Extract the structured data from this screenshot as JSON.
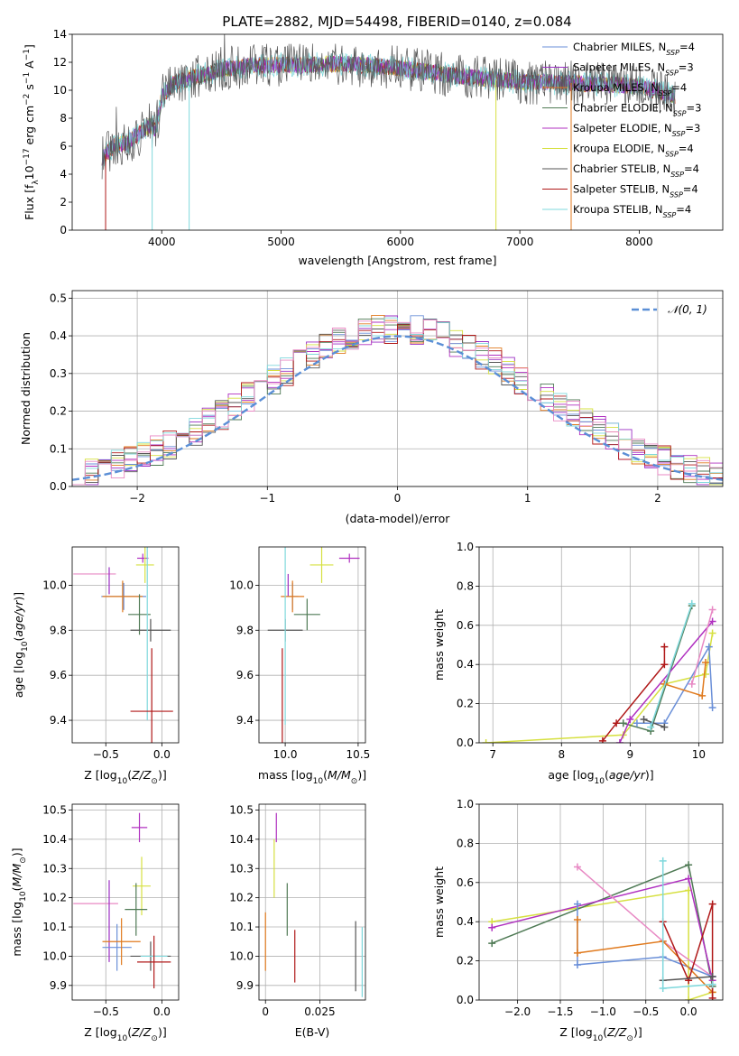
{
  "figure_title": "PLATE=2882, MJD=54498, FIBERID=0140, z=0.084",
  "colors": {
    "Chabrier MILES": "#6a8fd8",
    "Salpeter MILES": "#9b2fc4",
    "Kroupa MILES": "#e07a1e",
    "Chabrier ELODIE": "#4f7a55",
    "Salpeter ELODIE": "#b030c0",
    "Kroupa ELODIE": "#d6e040",
    "Chabrier STELIB": "#555555",
    "Salpeter STELIB": "#b01818",
    "Kroupa STELIB": "#7fd8dc",
    "pink": "#e889c4",
    "gaussian": "#5b8fd6"
  },
  "chart_data": [
    {
      "id": "spectrum",
      "type": "line",
      "title": "",
      "xlabel": "wavelength [Angstrom, rest frame]",
      "ylabel": "Flux [f_λ 10^-17 erg cm^-2 s^-1 A^-1]",
      "xlim": [
        3250,
        8700
      ],
      "ylim": [
        0,
        14
      ],
      "xticks": [
        4000,
        5000,
        6000,
        7000,
        8000
      ],
      "yticks": [
        0,
        2,
        4,
        6,
        8,
        10,
        12,
        14
      ],
      "legend_position": "top-right",
      "legend": [
        {
          "label": "Chabrier MILES, N",
          "sub": "SSP",
          "tail": "=4"
        },
        {
          "label": "Salpeter MILES, N",
          "sub": "SSP",
          "tail": "=3"
        },
        {
          "label": "Kroupa MILES, N",
          "sub": "SSP",
          "tail": "=4"
        },
        {
          "label": "Chabrier ELODIE, N",
          "sub": "SSP",
          "tail": "=3"
        },
        {
          "label": "Salpeter ELODIE, N",
          "sub": "SSP",
          "tail": "=3"
        },
        {
          "label": "Kroupa ELODIE, N",
          "sub": "SSP",
          "tail": "=4"
        },
        {
          "label": "Chabrier STELIB, N",
          "sub": "SSP",
          "tail": "=4"
        },
        {
          "label": "Salpeter STELIB, N",
          "sub": "SSP",
          "tail": "=4"
        },
        {
          "label": "Kroupa STELIB, N",
          "sub": "SSP",
          "tail": "=4"
        }
      ],
      "continuum": [
        [
          3500,
          5.2
        ],
        [
          3600,
          6.0
        ],
        [
          3700,
          6.2
        ],
        [
          3800,
          6.8
        ],
        [
          3900,
          7.5
        ],
        [
          3950,
          7.2
        ],
        [
          4000,
          9.5
        ],
        [
          4100,
          10.5
        ],
        [
          4300,
          11.0
        ],
        [
          4500,
          11.5
        ],
        [
          4800,
          11.8
        ],
        [
          5000,
          11.8
        ],
        [
          5200,
          11.8
        ],
        [
          5500,
          11.9
        ],
        [
          6000,
          11.6
        ],
        [
          6500,
          11.0
        ],
        [
          7000,
          10.6
        ],
        [
          7500,
          10.5
        ],
        [
          8000,
          10.3
        ],
        [
          8300,
          9.6
        ]
      ],
      "dips": [
        [
          3530,
          0
        ],
        [
          3920,
          0
        ],
        [
          4230,
          0
        ],
        [
          6800,
          0
        ],
        [
          7430,
          0
        ]
      ]
    },
    {
      "id": "residuals",
      "type": "histogram",
      "xlabel": "(data-model)/error",
      "ylabel": "Normed distribution",
      "xlim": [
        -2.5,
        2.5
      ],
      "ylim": [
        0,
        0.52
      ],
      "xticks": [
        -2,
        -1,
        0,
        1,
        2
      ],
      "yticks": [
        0.0,
        0.1,
        0.2,
        0.3,
        0.4,
        0.5
      ],
      "legend_position": "top-right",
      "legend_label": "𝒩(0, 1)",
      "bin_width": 0.1
    },
    {
      "id": "age_vs_Z",
      "type": "errorbar",
      "xlabel": "Z [log10(Z/Z⊙)]",
      "ylabel": "age [log10(age/yr)]",
      "xlim": [
        -0.8,
        0.15
      ],
      "ylim": [
        9.3,
        10.17
      ],
      "xticks": [
        -0.5,
        0.0
      ],
      "yticks": [
        9.4,
        9.6,
        9.8,
        10.0
      ],
      "points": [
        {
          "model": "Salpeter ELODIE",
          "x": -0.17,
          "y": 10.12,
          "xerr": 0.05,
          "yerr": 0.02
        },
        {
          "model": "Kroupa ELODIE",
          "x": -0.15,
          "y": 10.09,
          "xerr": 0.08,
          "yerr": 0.08
        },
        {
          "model": "pink",
          "x": -0.6,
          "y": 10.05,
          "xerr": 0.19,
          "yerr": 0.0
        },
        {
          "model": "Salpeter MILES",
          "x": -0.47,
          "y": 10.02,
          "xerr": 0.0,
          "yerr": 0.06
        },
        {
          "model": "Chabrier MILES",
          "x": -0.34,
          "y": 9.95,
          "xerr": 0.2,
          "yerr": 0.06
        },
        {
          "model": "Kroupa MILES",
          "x": -0.35,
          "y": 9.95,
          "xerr": 0.18,
          "yerr": 0.07
        },
        {
          "model": "Chabrier ELODIE",
          "x": -0.2,
          "y": 9.87,
          "xerr": 0.1,
          "yerr": 0.09
        },
        {
          "model": "Chabrier STELIB",
          "x": -0.1,
          "y": 9.8,
          "xerr": 0.18,
          "yerr": 0.05
        },
        {
          "model": "Kroupa STELIB",
          "x": -0.13,
          "y": 9.8,
          "xerr": 0.0,
          "yerr": 0.4
        },
        {
          "model": "Salpeter STELIB",
          "x": -0.09,
          "y": 9.44,
          "xerr": 0.19,
          "yerr": 0.28
        }
      ]
    },
    {
      "id": "age_vs_mass",
      "type": "errorbar",
      "xlabel": "mass [log10(M/M⊙)]",
      "ylabel": "",
      "xlim": [
        9.82,
        10.55
      ],
      "ylim": [
        9.3,
        10.17
      ],
      "xticks": [
        10.0,
        10.5
      ],
      "yticks": [
        9.4,
        9.6,
        9.8,
        10.0
      ],
      "points": [
        {
          "model": "Salpeter ELODIE",
          "x": 10.44,
          "y": 10.12,
          "xerr": 0.07,
          "yerr": 0.02
        },
        {
          "model": "Kroupa ELODIE",
          "x": 10.25,
          "y": 10.09,
          "xerr": 0.08,
          "yerr": 0.08
        },
        {
          "model": "Salpeter MILES",
          "x": 10.02,
          "y": 10.0,
          "xerr": 0.0,
          "yerr": 0.05
        },
        {
          "model": "Chabrier MILES",
          "x": 10.05,
          "y": 9.95,
          "xerr": 0.04,
          "yerr": 0.06
        },
        {
          "model": "Kroupa MILES",
          "x": 10.05,
          "y": 9.95,
          "xerr": 0.08,
          "yerr": 0.07
        },
        {
          "model": "Chabrier ELODIE",
          "x": 10.15,
          "y": 9.87,
          "xerr": 0.09,
          "yerr": 0.07
        },
        {
          "model": "Chabrier STELIB",
          "x": 10.0,
          "y": 9.8,
          "xerr": 0.12,
          "yerr": 0.05
        },
        {
          "model": "Kroupa STELIB",
          "x": 10.0,
          "y": 9.78,
          "xerr": 0.0,
          "yerr": 0.4
        },
        {
          "model": "Salpeter STELIB",
          "x": 9.98,
          "y": 9.44,
          "xerr": 0.0,
          "yerr": 0.28
        }
      ]
    },
    {
      "id": "weight_vs_age",
      "type": "line",
      "xlabel": "age [log10(age/yr)]",
      "ylabel": "mass weight",
      "xlim": [
        6.8,
        10.35
      ],
      "ylim": [
        0.0,
        1.0
      ],
      "xticks": [
        7,
        8,
        9,
        10
      ],
      "yticks": [
        0.0,
        0.2,
        0.4,
        0.6,
        0.8,
        1.0
      ],
      "series": [
        {
          "model": "Kroupa ELODIE",
          "x": [
            6.9,
            8.9,
            9.5,
            10.1,
            10.2
          ],
          "y": [
            0.0,
            0.04,
            0.3,
            0.35,
            0.56
          ]
        },
        {
          "model": "Salpeter STELIB",
          "x": [
            8.6,
            8.8,
            9.5,
            9.5
          ],
          "y": [
            0.01,
            0.1,
            0.4,
            0.49
          ]
        },
        {
          "model": "Chabrier ELODIE",
          "x": [
            8.9,
            9.3,
            9.9
          ],
          "y": [
            0.1,
            0.06,
            0.7
          ]
        },
        {
          "model": "Salpeter ELODIE",
          "x": [
            8.85,
            9.0,
            10.2
          ],
          "y": [
            0.0,
            0.12,
            0.62
          ]
        },
        {
          "model": "Chabrier MILES",
          "x": [
            9.1,
            9.5,
            10.15,
            10.2
          ],
          "y": [
            0.1,
            0.1,
            0.49,
            0.18
          ]
        },
        {
          "model": "Kroupa MILES",
          "x": [
            9.5,
            10.05,
            10.1
          ],
          "y": [
            0.3,
            0.24,
            0.41
          ]
        },
        {
          "model": "Chabrier STELIB",
          "x": [
            9.2,
            9.5
          ],
          "y": [
            0.12,
            0.08
          ]
        },
        {
          "model": "Kroupa STELIB",
          "x": [
            9.3,
            9.9
          ],
          "y": [
            0.08,
            0.71
          ]
        },
        {
          "model": "pink",
          "x": [
            9.9,
            10.2
          ],
          "y": [
            0.3,
            0.68
          ]
        }
      ]
    },
    {
      "id": "mass_vs_Z",
      "type": "errorbar",
      "xlabel": "Z [log10(Z/Z⊙)]",
      "ylabel": "mass [log10(M/M⊙)]",
      "xlim": [
        -0.8,
        0.15
      ],
      "ylim": [
        9.85,
        10.52
      ],
      "xticks": [
        -0.5,
        0.0
      ],
      "yticks": [
        9.9,
        10.0,
        10.1,
        10.2,
        10.3,
        10.4,
        10.5
      ],
      "points": [
        {
          "model": "Salpeter ELODIE",
          "x": -0.2,
          "y": 10.44,
          "xerr": 0.07,
          "yerr": 0.05
        },
        {
          "model": "Kroupa ELODIE",
          "x": -0.18,
          "y": 10.24,
          "xerr": 0.08,
          "yerr": 0.1
        },
        {
          "model": "pink",
          "x": -0.59,
          "y": 10.18,
          "xerr": 0.2,
          "yerr": 0.0
        },
        {
          "model": "Chabrier ELODIE",
          "x": -0.23,
          "y": 10.16,
          "xerr": 0.1,
          "yerr": 0.09
        },
        {
          "model": "Salpeter MILES",
          "x": -0.47,
          "y": 10.12,
          "xerr": 0.0,
          "yerr": 0.14
        },
        {
          "model": "Chabrier MILES",
          "x": -0.4,
          "y": 10.03,
          "xerr": 0.13,
          "yerr": 0.08
        },
        {
          "model": "Kroupa MILES",
          "x": -0.36,
          "y": 10.05,
          "xerr": 0.17,
          "yerr": 0.08
        },
        {
          "model": "Chabrier STELIB",
          "x": -0.1,
          "y": 10.0,
          "xerr": 0.18,
          "yerr": 0.05
        },
        {
          "model": "Kroupa STELIB",
          "x": -0.07,
          "y": 10.0,
          "xerr": 0.12,
          "yerr": 0.0
        },
        {
          "model": "Salpeter STELIB",
          "x": -0.07,
          "y": 9.98,
          "xerr": 0.15,
          "yerr": 0.09
        }
      ]
    },
    {
      "id": "mass_vs_ebv",
      "type": "errorbar",
      "xlabel": "E(B-V)",
      "ylabel": "",
      "xlim": [
        -0.003,
        0.046
      ],
      "ylim": [
        9.85,
        10.52
      ],
      "xticks": [
        0.0,
        0.025
      ],
      "yticks": [
        9.9,
        10.0,
        10.1,
        10.2,
        10.3,
        10.4,
        10.5
      ],
      "points": [
        {
          "model": "Salpeter ELODIE",
          "x": 0.005,
          "y": 10.44,
          "xerr": 0.0,
          "yerr": 0.05
        },
        {
          "model": "Kroupa ELODIE",
          "x": 0.004,
          "y": 10.3,
          "xerr": 0.0,
          "yerr": 0.1
        },
        {
          "model": "Chabrier ELODIE",
          "x": 0.01,
          "y": 10.16,
          "xerr": 0.0,
          "yerr": 0.09
        },
        {
          "model": "Kroupa MILES",
          "x": 0.0,
          "y": 10.05,
          "xerr": 0.0,
          "yerr": 0.1
        },
        {
          "model": "Salpeter STELIB",
          "x": 0.0135,
          "y": 10.0,
          "xerr": 0.0,
          "yerr": 0.09
        },
        {
          "model": "Chabrier STELIB",
          "x": 0.0415,
          "y": 10.0,
          "xerr": 0.0,
          "yerr": 0.12
        },
        {
          "model": "Kroupa STELIB",
          "x": 0.0445,
          "y": 9.98,
          "xerr": 0.0,
          "yerr": 0.12
        }
      ]
    },
    {
      "id": "weight_vs_Z",
      "type": "line",
      "xlabel": "Z [log10(Z/Z⊙)]",
      "ylabel": "mass weight",
      "xlim": [
        -2.45,
        0.4
      ],
      "ylim": [
        0.0,
        1.0
      ],
      "xticks": [
        -2.0,
        -1.5,
        -1.0,
        -0.5,
        0.0
      ],
      "yticks": [
        0.0,
        0.2,
        0.4,
        0.6,
        0.8,
        1.0
      ],
      "series": [
        {
          "model": "Kroupa ELODIE",
          "x": [
            -2.3,
            0.0,
            0.0,
            0.28
          ],
          "y": [
            0.4,
            0.56,
            0.0,
            0.04
          ]
        },
        {
          "model": "Chabrier ELODIE",
          "x": [
            -2.3,
            0.0,
            0.28
          ],
          "y": [
            0.29,
            0.69,
            0.07
          ]
        },
        {
          "model": "Salpeter ELODIE",
          "x": [
            -2.3,
            0.0,
            0.28
          ],
          "y": [
            0.37,
            0.62,
            0.1
          ]
        },
        {
          "model": "pink",
          "x": [
            -1.3,
            -0.3,
            0.28
          ],
          "y": [
            0.68,
            0.3,
            0.12
          ]
        },
        {
          "model": "Chabrier MILES",
          "x": [
            -1.3,
            -1.3,
            -0.3,
            0.28
          ],
          "y": [
            0.49,
            0.18,
            0.22,
            0.12
          ]
        },
        {
          "model": "Kroupa MILES",
          "x": [
            -1.3,
            -1.3,
            -0.3,
            0.28
          ],
          "y": [
            0.41,
            0.24,
            0.3,
            0.04
          ]
        },
        {
          "model": "Salpeter STELIB",
          "x": [
            -0.3,
            0.0,
            0.28,
            0.28
          ],
          "y": [
            0.4,
            0.1,
            0.49,
            0.01
          ]
        },
        {
          "model": "Chabrier STELIB",
          "x": [
            -0.3,
            0.28
          ],
          "y": [
            0.1,
            0.12
          ]
        },
        {
          "model": "Kroupa STELIB",
          "x": [
            -0.3,
            -0.3,
            0.28
          ],
          "y": [
            0.71,
            0.06,
            0.08
          ]
        }
      ]
    }
  ]
}
